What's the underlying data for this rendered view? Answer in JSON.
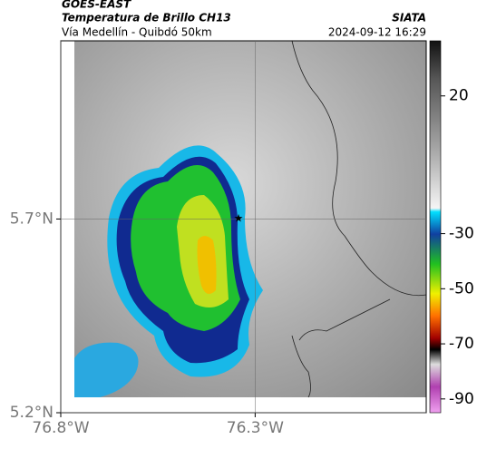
{
  "header": {
    "source": "GOES-EAST",
    "title": "Temperatura de Brillo CH13",
    "org": "SIATA",
    "subtitle": "Vía Medellín - Quibdó 50km",
    "timestamp": "2024-09-12 16:29"
  },
  "map": {
    "xlim": [
      -76.8,
      -75.86
    ],
    "ylim": [
      5.2,
      6.16
    ],
    "xticks": [
      {
        "value": -76.8,
        "label": "76.8°W"
      },
      {
        "value": -76.3,
        "label": "76.3°W"
      }
    ],
    "yticks": [
      {
        "value": 5.7,
        "label": "5.7°N"
      },
      {
        "value": 5.2,
        "label": "5.2°N"
      }
    ],
    "grid": true
  },
  "colorbar": {
    "lim": [
      -95,
      40
    ],
    "ticks": [
      20,
      -30,
      -50,
      -70,
      -90
    ]
  }
}
